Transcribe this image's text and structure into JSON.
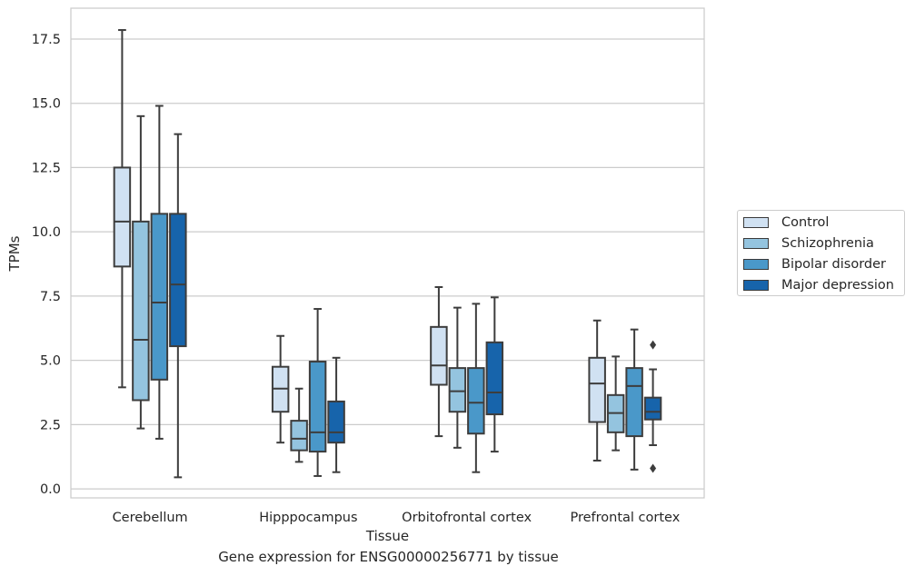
{
  "caption": "Gene expression for ENSG00000256771 by tissue",
  "chart_data": {
    "type": "boxplot",
    "xlabel": "Tissue",
    "ylabel": "TPMs",
    "ylim": [
      -0.35,
      18.7
    ],
    "yticks": [
      "0.0",
      "2.5",
      "5.0",
      "7.5",
      "10.0",
      "12.5",
      "15.0",
      "17.5"
    ],
    "ytick_values": [
      0,
      2.5,
      5,
      7.5,
      10,
      12.5,
      15,
      17.5
    ],
    "grid": "horizontal",
    "legend_position": "right",
    "categories": [
      "Cerebellum",
      "Hipppocampus",
      "Orbitofrontal cortex",
      "Prefrontal cortex"
    ],
    "series": [
      {
        "name": "Control",
        "color": "#d0e1f2",
        "boxes": [
          {
            "whisker_low": 3.95,
            "q1": 8.65,
            "median": 10.4,
            "q3": 12.5,
            "whisker_high": 17.85,
            "outliers": []
          },
          {
            "whisker_low": 1.8,
            "q1": 3.0,
            "median": 3.9,
            "q3": 4.75,
            "whisker_high": 5.95,
            "outliers": []
          },
          {
            "whisker_low": 2.05,
            "q1": 4.05,
            "median": 4.8,
            "q3": 6.3,
            "whisker_high": 7.85,
            "outliers": []
          },
          {
            "whisker_low": 1.1,
            "q1": 2.6,
            "median": 4.1,
            "q3": 5.1,
            "whisker_high": 6.55,
            "outliers": []
          }
        ]
      },
      {
        "name": "Schizophrenia",
        "color": "#94c4df",
        "boxes": [
          {
            "whisker_low": 2.35,
            "q1": 3.45,
            "median": 5.8,
            "q3": 10.4,
            "whisker_high": 14.5,
            "outliers": []
          },
          {
            "whisker_low": 1.05,
            "q1": 1.5,
            "median": 1.95,
            "q3": 2.65,
            "whisker_high": 3.9,
            "outliers": []
          },
          {
            "whisker_low": 1.6,
            "q1": 3.0,
            "median": 3.8,
            "q3": 4.7,
            "whisker_high": 7.05,
            "outliers": []
          },
          {
            "whisker_low": 1.5,
            "q1": 2.2,
            "median": 2.95,
            "q3": 3.65,
            "whisker_high": 5.15,
            "outliers": []
          }
        ]
      },
      {
        "name": "Bipolar disorder",
        "color": "#4a98c9",
        "boxes": [
          {
            "whisker_low": 1.95,
            "q1": 4.25,
            "median": 7.25,
            "q3": 10.7,
            "whisker_high": 14.9,
            "outliers": []
          },
          {
            "whisker_low": 0.5,
            "q1": 1.45,
            "median": 2.2,
            "q3": 4.95,
            "whisker_high": 7.0,
            "outliers": []
          },
          {
            "whisker_low": 0.65,
            "q1": 2.15,
            "median": 3.35,
            "q3": 4.7,
            "whisker_high": 7.2,
            "outliers": []
          },
          {
            "whisker_low": 0.75,
            "q1": 2.05,
            "median": 4.0,
            "q3": 4.7,
            "whisker_high": 6.2,
            "outliers": []
          }
        ]
      },
      {
        "name": "Major depression",
        "color": "#1764ab",
        "boxes": [
          {
            "whisker_low": 0.45,
            "q1": 5.55,
            "median": 7.95,
            "q3": 10.7,
            "whisker_high": 13.8,
            "outliers": []
          },
          {
            "whisker_low": 0.65,
            "q1": 1.8,
            "median": 2.2,
            "q3": 3.4,
            "whisker_high": 5.1,
            "outliers": []
          },
          {
            "whisker_low": 1.45,
            "q1": 2.9,
            "median": 3.75,
            "q3": 5.7,
            "whisker_high": 7.45,
            "outliers": []
          },
          {
            "whisker_low": 1.7,
            "q1": 2.7,
            "median": 3.0,
            "q3": 3.55,
            "whisker_high": 4.65,
            "outliers": [
              5.6,
              0.8
            ]
          }
        ]
      }
    ]
  }
}
